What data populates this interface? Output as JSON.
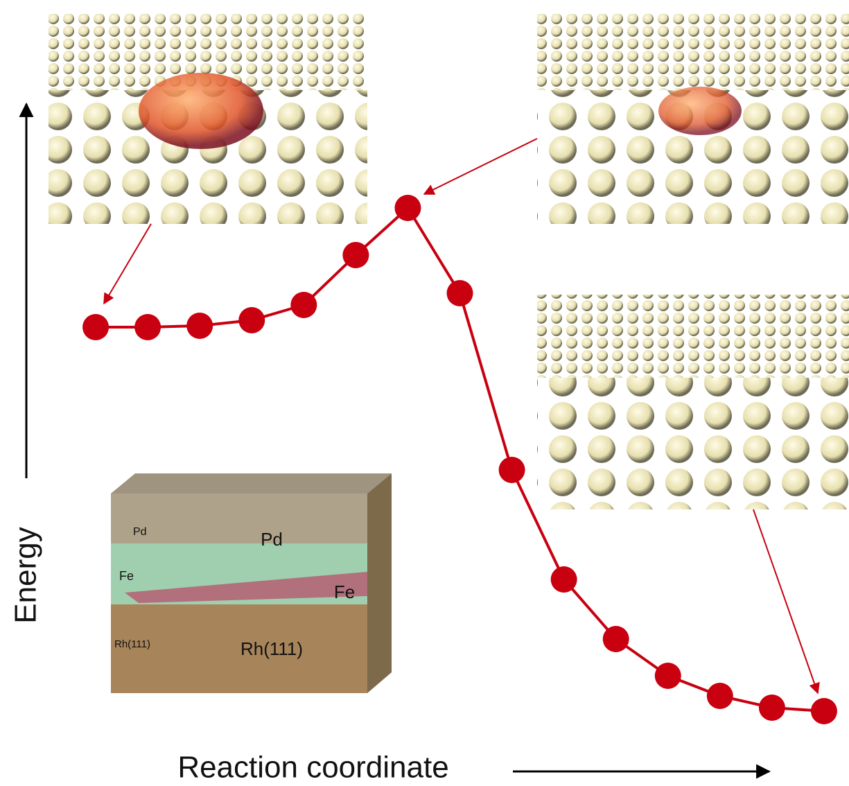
{
  "chart_data": {
    "type": "line",
    "x_label": "Reaction coordinate",
    "y_label": "Energy",
    "x": [
      1,
      2,
      3,
      4,
      5,
      6,
      7,
      8,
      9,
      10,
      11,
      12,
      13,
      14,
      15
    ],
    "series": [
      {
        "color": "#c8000f",
        "values": [
          554,
          554,
          556,
          564,
          586,
          658,
          726,
          603,
          348,
          190,
          104,
          51,
          22,
          5,
          0
        ]
      }
    ],
    "xlim": [
      0,
      16
    ],
    "ylim": [
      0,
      1026
    ],
    "annotations": [
      "Pd",
      "Pd",
      "Fe",
      "Fe",
      "Rh(111)",
      "Rh(111)"
    ]
  }
}
